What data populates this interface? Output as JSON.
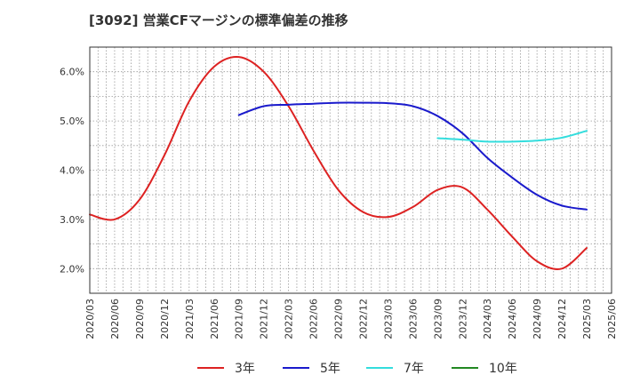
{
  "chart_data": {
    "type": "line",
    "title": "[3092]  営業CFマージンの標準偏差の推移",
    "xlabel": "",
    "ylabel": "",
    "x_ticks": [
      "2020/03",
      "2020/06",
      "2020/09",
      "2020/12",
      "2021/03",
      "2021/06",
      "2021/09",
      "2021/12",
      "2022/03",
      "2022/06",
      "2022/09",
      "2022/12",
      "2023/03",
      "2023/06",
      "2023/09",
      "2023/12",
      "2024/03",
      "2024/06",
      "2024/09",
      "2024/12",
      "2025/03",
      "2025/06"
    ],
    "y_ticks": [
      "2.0%",
      "3.0%",
      "4.0%",
      "5.0%",
      "6.0%"
    ],
    "ylim": [
      1.5,
      6.5
    ],
    "grid": true,
    "legend_position": "bottom",
    "series": [
      {
        "name": "3年",
        "color": "#dd2222",
        "x": [
          "2020/03",
          "2020/06",
          "2020/09",
          "2020/12",
          "2021/03",
          "2021/06",
          "2021/09",
          "2021/12",
          "2022/03",
          "2022/06",
          "2022/09",
          "2022/12",
          "2023/03",
          "2023/06",
          "2023/09",
          "2023/12",
          "2024/03",
          "2024/06",
          "2024/09",
          "2024/12",
          "2025/03"
        ],
        "values": [
          3.1,
          3.0,
          3.4,
          4.3,
          5.4,
          6.1,
          6.3,
          6.0,
          5.3,
          4.4,
          3.6,
          3.15,
          3.05,
          3.25,
          3.6,
          3.65,
          3.2,
          2.65,
          2.15,
          2.0,
          2.42
        ]
      },
      {
        "name": "5年",
        "color": "#1a1acc",
        "x": [
          "2021/09",
          "2021/12",
          "2022/03",
          "2022/06",
          "2022/09",
          "2022/12",
          "2023/03",
          "2023/06",
          "2023/09",
          "2023/12",
          "2024/03",
          "2024/06",
          "2024/09",
          "2024/12",
          "2025/03"
        ],
        "values": [
          5.12,
          5.3,
          5.33,
          5.35,
          5.37,
          5.37,
          5.36,
          5.3,
          5.1,
          4.75,
          4.25,
          3.85,
          3.5,
          3.28,
          3.2
        ]
      },
      {
        "name": "7年",
        "color": "#33dddd",
        "x": [
          "2023/09",
          "2023/12",
          "2024/03",
          "2024/06",
          "2024/09",
          "2024/12",
          "2025/03"
        ],
        "values": [
          4.65,
          4.62,
          4.58,
          4.58,
          4.6,
          4.66,
          4.8
        ]
      },
      {
        "name": "10年",
        "color": "#228822",
        "x": [],
        "values": []
      }
    ]
  }
}
